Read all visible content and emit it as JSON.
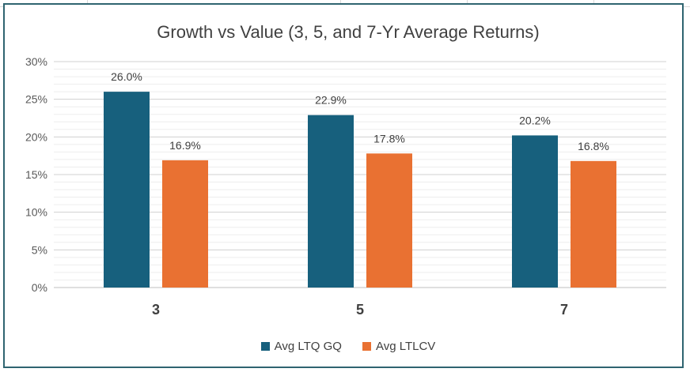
{
  "chart_data": {
    "type": "bar",
    "title": "Growth vs Value (3, 5, and 7-Yr Average Returns)",
    "xlabel": "",
    "ylabel": "",
    "categories": [
      "3",
      "5",
      "7"
    ],
    "series": [
      {
        "name": "Avg LTQ GQ",
        "values": [
          26.0,
          22.9,
          20.2
        ],
        "labels": [
          "26.0%",
          "22.9%",
          "20.2%"
        ],
        "color": "#17607d"
      },
      {
        "name": "Avg LTLCV",
        "values": [
          16.9,
          17.8,
          16.8
        ],
        "labels": [
          "16.9%",
          "17.8%",
          "16.8%"
        ],
        "color": "#e97132"
      }
    ],
    "ylim": [
      0,
      30
    ],
    "yticks": [
      0,
      5,
      10,
      15,
      20,
      25,
      30
    ],
    "ytick_labels": [
      "0%",
      "5%",
      "10%",
      "15%",
      "20%",
      "25%",
      "30%"
    ],
    "grid": true,
    "legend": "bottom"
  }
}
